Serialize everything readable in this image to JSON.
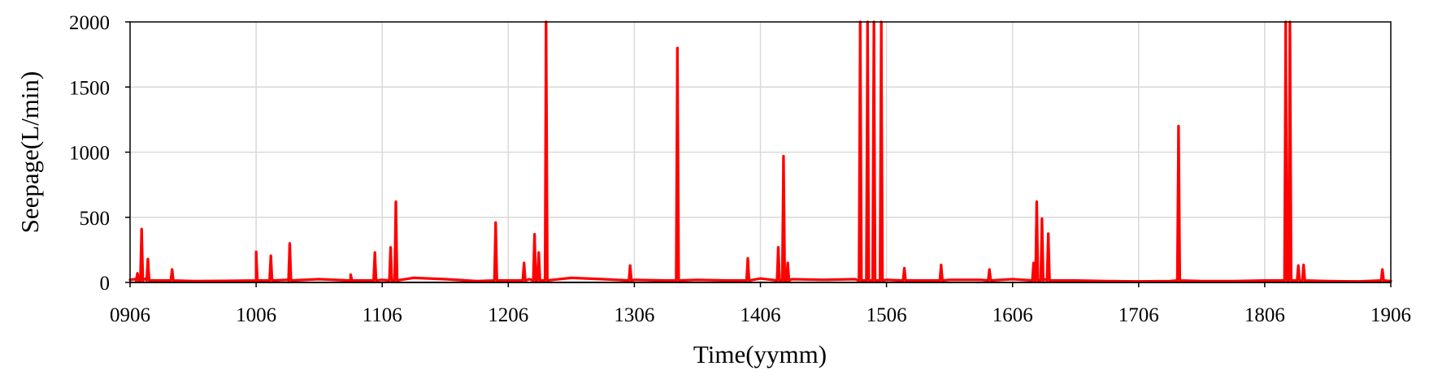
{
  "chart_data": {
    "type": "line",
    "title": "",
    "xlabel": "Time(yymm)",
    "ylabel": "Seepage(L/min)",
    "ylim": [
      0,
      2000
    ],
    "xlim": [
      0,
      120
    ],
    "grid": true,
    "legend": "none",
    "x_unit": "months since 2009-06",
    "x_ticks": [
      {
        "label": "0906",
        "value": 0
      },
      {
        "label": "1006",
        "value": 12
      },
      {
        "label": "1106",
        "value": 24
      },
      {
        "label": "1206",
        "value": 36
      },
      {
        "label": "1306",
        "value": 48
      },
      {
        "label": "1406",
        "value": 60
      },
      {
        "label": "1506",
        "value": 72
      },
      {
        "label": "1606",
        "value": 84
      },
      {
        "label": "1706",
        "value": 96
      },
      {
        "label": "1806",
        "value": 108
      },
      {
        "label": "1906",
        "value": 120
      }
    ],
    "y_ticks": [
      {
        "label": "0",
        "value": 0
      },
      {
        "label": "500",
        "value": 500
      },
      {
        "label": "1000",
        "value": 1000
      },
      {
        "label": "1500",
        "value": 1500
      },
      {
        "label": "2000",
        "value": 2000
      }
    ],
    "series": [
      {
        "name": "",
        "color": "#ff0000",
        "baseline_x": [
          0,
          0.5,
          1.5,
          3,
          6,
          9,
          12,
          15,
          18,
          21,
          24,
          27,
          30,
          33,
          36,
          38,
          39.5,
          42,
          45,
          48,
          51,
          54,
          57,
          60,
          63,
          66,
          69,
          72,
          75,
          78,
          81,
          84,
          87,
          90,
          93,
          96,
          99,
          102,
          105,
          108,
          111,
          114,
          117,
          120
        ],
        "baseline_y": [
          20,
          25,
          30,
          15,
          10,
          12,
          15,
          20,
          25,
          15,
          20,
          35,
          25,
          10,
          15,
          25,
          45,
          35,
          25,
          20,
          15,
          20,
          15,
          30,
          25,
          20,
          25,
          20,
          15,
          20,
          20,
          25,
          25,
          15,
          10,
          8,
          10,
          10,
          10,
          15,
          15,
          10,
          8,
          10
        ],
        "spikes": [
          {
            "x": 0.7,
            "y": 70
          },
          {
            "x": 1.1,
            "y": 410
          },
          {
            "x": 1.7,
            "y": 180
          },
          {
            "x": 4.0,
            "y": 100
          },
          {
            "x": 12.0,
            "y": 235
          },
          {
            "x": 13.4,
            "y": 205
          },
          {
            "x": 15.2,
            "y": 300
          },
          {
            "x": 21.0,
            "y": 60
          },
          {
            "x": 23.3,
            "y": 230
          },
          {
            "x": 24.8,
            "y": 270
          },
          {
            "x": 25.3,
            "y": 620
          },
          {
            "x": 34.8,
            "y": 460
          },
          {
            "x": 37.5,
            "y": 150
          },
          {
            "x": 38.5,
            "y": 370
          },
          {
            "x": 38.9,
            "y": 230
          },
          {
            "x": 39.6,
            "y": 2000
          },
          {
            "x": 47.6,
            "y": 130
          },
          {
            "x": 52.1,
            "y": 1800
          },
          {
            "x": 58.8,
            "y": 185
          },
          {
            "x": 61.7,
            "y": 270
          },
          {
            "x": 62.2,
            "y": 970
          },
          {
            "x": 62.6,
            "y": 150
          },
          {
            "x": 69.5,
            "y": 2000
          },
          {
            "x": 70.2,
            "y": 2000
          },
          {
            "x": 70.8,
            "y": 2000
          },
          {
            "x": 71.5,
            "y": 2000
          },
          {
            "x": 73.7,
            "y": 110
          },
          {
            "x": 77.2,
            "y": 135
          },
          {
            "x": 81.8,
            "y": 100
          },
          {
            "x": 86.0,
            "y": 150
          },
          {
            "x": 86.3,
            "y": 620
          },
          {
            "x": 86.8,
            "y": 490
          },
          {
            "x": 87.4,
            "y": 375
          },
          {
            "x": 99.8,
            "y": 1200
          },
          {
            "x": 110.0,
            "y": 2000
          },
          {
            "x": 110.4,
            "y": 2000
          },
          {
            "x": 111.2,
            "y": 130
          },
          {
            "x": 111.7,
            "y": 135
          },
          {
            "x": 119.2,
            "y": 100
          }
        ]
      }
    ]
  }
}
